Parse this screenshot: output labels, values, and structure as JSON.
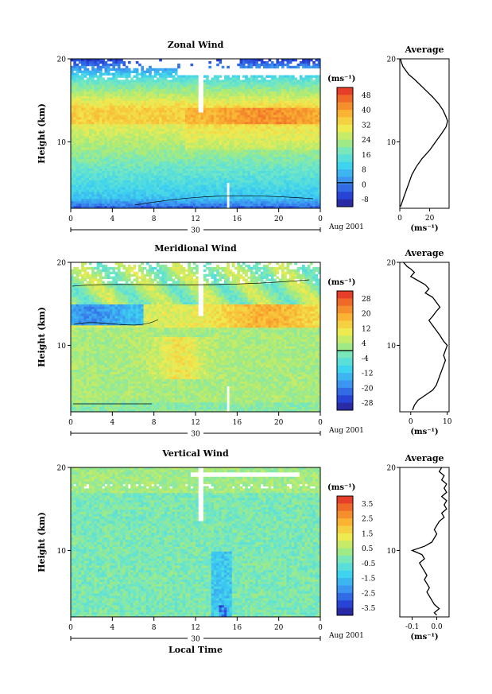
{
  "chart_data": [
    {
      "type": "heatmap",
      "title": "Zonal Wind",
      "ylabel": "Height (km)",
      "ylim": [
        2,
        20
      ],
      "yticks": [
        "20",
        "10"
      ],
      "xticks": [
        "0",
        "4",
        "8",
        "12",
        "16",
        "20",
        "0"
      ],
      "date_day": "30",
      "date_month_year": "Aug 2001",
      "unit": "(ms⁻¹)",
      "colorbar_ticks": [
        "48",
        "40",
        "32",
        "24",
        "16",
        "8",
        "0",
        "-8"
      ],
      "colorbar_range": [
        -12,
        52
      ],
      "profile": {
        "title": "Average",
        "xlabel": "(ms⁻¹)",
        "xticks": [
          "0",
          "20"
        ],
        "xlim": [
          0,
          33
        ],
        "yticks": [
          "20",
          "10"
        ],
        "points": [
          [
            0.5,
            20
          ],
          [
            1,
            19.6
          ],
          [
            2,
            19.1
          ],
          [
            4,
            18.6
          ],
          [
            6,
            18.1
          ],
          [
            10,
            17.5
          ],
          [
            14,
            16.8
          ],
          [
            18,
            16.1
          ],
          [
            22,
            15.4
          ],
          [
            26,
            14.6
          ],
          [
            29,
            13.8
          ],
          [
            31,
            13
          ],
          [
            32,
            12.5
          ],
          [
            31,
            11.8
          ],
          [
            28,
            11
          ],
          [
            24,
            10
          ],
          [
            20,
            9
          ],
          [
            15,
            8
          ],
          [
            11,
            7
          ],
          [
            8,
            6
          ],
          [
            6,
            5
          ],
          [
            4,
            4
          ],
          [
            2,
            3
          ],
          [
            0.5,
            2.2
          ]
        ]
      }
    },
    {
      "type": "heatmap",
      "title": "Meridional Wind",
      "ylabel": "Height (km)",
      "ylim": [
        2,
        20
      ],
      "yticks": [
        "20",
        "10"
      ],
      "xticks": [
        "0",
        "4",
        "8",
        "12",
        "16",
        "20",
        "0"
      ],
      "date_day": "30",
      "date_month_year": "Aug 2001",
      "unit": "(ms⁻¹)",
      "colorbar_ticks": [
        "28",
        "20",
        "12",
        "4",
        "-4",
        "-12",
        "-20",
        "-28"
      ],
      "colorbar_range": [
        -32,
        32
      ],
      "profile": {
        "title": "Average",
        "xlabel": "(ms⁻¹)",
        "xticks": [
          "0",
          "10"
        ],
        "xlim": [
          -3,
          10.5
        ],
        "yticks": [
          "20",
          "10"
        ],
        "points": [
          [
            -2,
            20
          ],
          [
            -1,
            19.5
          ],
          [
            0,
            19.2
          ],
          [
            1,
            18.8
          ],
          [
            0,
            18.3
          ],
          [
            2,
            17.8
          ],
          [
            4,
            17.3
          ],
          [
            5,
            16.8
          ],
          [
            4,
            16.3
          ],
          [
            6,
            15.8
          ],
          [
            7,
            15.2
          ],
          [
            8,
            14.6
          ],
          [
            7,
            14.1
          ],
          [
            6,
            13.5
          ],
          [
            5,
            13
          ],
          [
            6,
            12.4
          ],
          [
            7,
            11.8
          ],
          [
            8,
            11.2
          ],
          [
            9,
            10.5
          ],
          [
            10,
            10
          ],
          [
            9.5,
            9.4
          ],
          [
            9,
            8.8
          ],
          [
            9.5,
            8.2
          ],
          [
            9,
            7.6
          ],
          [
            8.5,
            7
          ],
          [
            8,
            6.4
          ],
          [
            7.5,
            5.8
          ],
          [
            7,
            5.2
          ],
          [
            6,
            4.6
          ],
          [
            4,
            4
          ],
          [
            2,
            3.4
          ],
          [
            1,
            2.8
          ],
          [
            0.5,
            2.2
          ]
        ]
      }
    },
    {
      "type": "heatmap",
      "title": "Vertical Wind",
      "ylabel": "Height (km)",
      "ylim": [
        2,
        20
      ],
      "yticks": [
        "20",
        "10"
      ],
      "xticks": [
        "0",
        "4",
        "8",
        "12",
        "16",
        "20",
        "0"
      ],
      "date_day": "30",
      "date_month_year": "Aug 2001",
      "xlabel": "Local Time",
      "unit": "(ms⁻¹)",
      "colorbar_ticks": [
        "3.5",
        "2.5",
        "1.5",
        "0.5",
        "-0.5",
        "-1.5",
        "-2.5",
        "-3.5"
      ],
      "colorbar_range": [
        -4,
        4
      ],
      "profile": {
        "title": "Average",
        "xlabel": "(ms⁻¹)",
        "xticks": [
          "-0.1",
          "0.0"
        ],
        "xlim": [
          -0.15,
          0.05
        ],
        "yticks": [
          "20",
          "10"
        ],
        "points": [
          [
            0.02,
            20
          ],
          [
            0.01,
            19.5
          ],
          [
            0.03,
            19
          ],
          [
            0.02,
            18.5
          ],
          [
            0.04,
            18
          ],
          [
            0.03,
            17.5
          ],
          [
            0.04,
            17
          ],
          [
            0.02,
            16.5
          ],
          [
            0.04,
            16
          ],
          [
            0.03,
            15.5
          ],
          [
            0.04,
            15
          ],
          [
            0.02,
            14.5
          ],
          [
            0.03,
            14
          ],
          [
            0.01,
            13.5
          ],
          [
            0.0,
            13
          ],
          [
            -0.01,
            12.5
          ],
          [
            0.0,
            12
          ],
          [
            -0.01,
            11.5
          ],
          [
            -0.02,
            11
          ],
          [
            -0.05,
            10.5
          ],
          [
            -0.1,
            10
          ],
          [
            -0.06,
            9.5
          ],
          [
            -0.05,
            9
          ],
          [
            -0.07,
            8.5
          ],
          [
            -0.06,
            8
          ],
          [
            -0.05,
            7.5
          ],
          [
            -0.04,
            7
          ],
          [
            -0.05,
            6.5
          ],
          [
            -0.04,
            6
          ],
          [
            -0.03,
            5.5
          ],
          [
            -0.04,
            5
          ],
          [
            -0.03,
            4.5
          ],
          [
            -0.02,
            4
          ],
          [
            -0.01,
            3.5
          ],
          [
            0.01,
            3
          ],
          [
            -0.01,
            2.5
          ],
          [
            0.0,
            2.2
          ]
        ]
      }
    }
  ]
}
